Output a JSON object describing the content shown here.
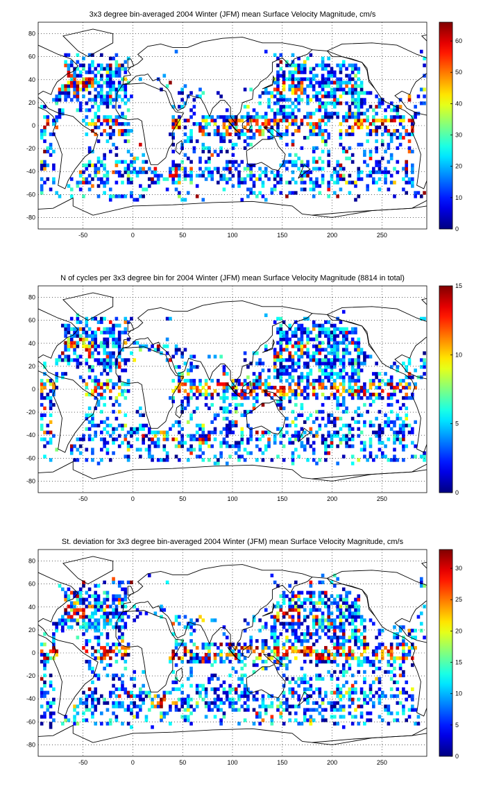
{
  "chart_data": [
    {
      "type": "heatmap",
      "title": "3x3 degree bin-averaged 2004 Winter (JFM) mean Surface Velocity Magnitude, cm/s",
      "xlim": [
        -95,
        295
      ],
      "ylim": [
        -90,
        90
      ],
      "xticks": [
        -50,
        0,
        50,
        100,
        150,
        200,
        250
      ],
      "yticks": [
        -80,
        -60,
        -40,
        -20,
        0,
        20,
        40,
        60,
        80
      ],
      "grid": "dotted",
      "colorbar": {
        "range": [
          0,
          66
        ],
        "ticks": [
          0,
          10,
          20,
          30,
          40,
          50,
          60
        ],
        "colormap": "jet",
        "position": "right"
      },
      "bin_size_deg": 3,
      "seed": 11
    },
    {
      "type": "heatmap",
      "title": "N of cycles per 3x3 degree bin for 2004 Winter (JFM) mean Surface Velocity Magnitude (8814 in total)",
      "xlim": [
        -95,
        295
      ],
      "ylim": [
        -90,
        90
      ],
      "xticks": [
        -50,
        0,
        50,
        100,
        150,
        200,
        250
      ],
      "yticks": [
        -80,
        -60,
        -40,
        -20,
        0,
        20,
        40,
        60,
        80
      ],
      "grid": "dotted",
      "colorbar": {
        "range": [
          0,
          15
        ],
        "ticks": [
          0,
          5,
          10,
          15
        ],
        "colormap": "jet",
        "position": "right"
      },
      "bin_size_deg": 3,
      "seed": 23
    },
    {
      "type": "heatmap",
      "title": "St. deviation for 3x3 degree bin-averaged 2004 Winter (JFM) mean Surface Velocity Magnitude, cm/s",
      "xlim": [
        -95,
        295
      ],
      "ylim": [
        -90,
        90
      ],
      "xticks": [
        -50,
        0,
        50,
        100,
        150,
        200,
        250
      ],
      "yticks": [
        -80,
        -60,
        -40,
        -20,
        0,
        20,
        40,
        60,
        80
      ],
      "grid": "dotted",
      "colorbar": {
        "range": [
          0,
          33
        ],
        "ticks": [
          0,
          5,
          10,
          15,
          20,
          25,
          30
        ],
        "colormap": "jet",
        "position": "right"
      },
      "bin_size_deg": 3,
      "seed": 37
    }
  ]
}
